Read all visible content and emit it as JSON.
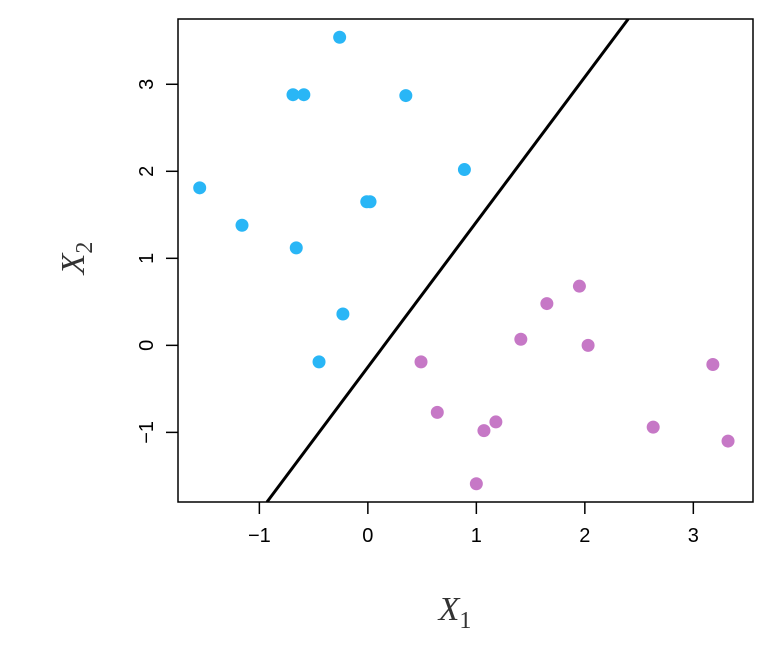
{
  "chart_data": {
    "type": "scatter",
    "xlabel": {
      "base": "X",
      "sub": "1"
    },
    "ylabel": {
      "base": "X",
      "sub": "2"
    },
    "xlim": [
      -1.75,
      3.55
    ],
    "ylim": [
      -1.8,
      3.75
    ],
    "x_ticks": [
      -1,
      0,
      1,
      2,
      3
    ],
    "y_ticks": [
      -1,
      0,
      1,
      2,
      3
    ],
    "x_tick_labels": [
      "−1",
      "0",
      "1",
      "2",
      "3"
    ],
    "y_tick_labels": [
      "−1",
      "0",
      "1",
      "2",
      "3"
    ],
    "grid": false,
    "line": {
      "points": [
        [
          -0.93,
          -1.8
        ],
        [
          2.4,
          3.75
        ]
      ],
      "color": "#000000"
    },
    "series": [
      {
        "color": "#29b6f6",
        "points": [
          [
            -0.26,
            3.54
          ],
          [
            -0.69,
            2.88
          ],
          [
            -0.59,
            2.88
          ],
          [
            0.35,
            2.87
          ],
          [
            0.89,
            2.02
          ],
          [
            -1.55,
            1.81
          ],
          [
            -0.01,
            1.65
          ],
          [
            0.02,
            1.65
          ],
          [
            -1.16,
            1.38
          ],
          [
            -0.66,
            1.12
          ],
          [
            -0.23,
            0.36
          ],
          [
            -0.45,
            -0.19
          ]
        ]
      },
      {
        "color": "#c678c6",
        "points": [
          [
            1.95,
            0.68
          ],
          [
            1.65,
            0.48
          ],
          [
            1.41,
            0.07
          ],
          [
            2.03,
            0.0
          ],
          [
            0.49,
            -0.19
          ],
          [
            3.18,
            -0.22
          ],
          [
            0.64,
            -0.77
          ],
          [
            1.18,
            -0.88
          ],
          [
            1.07,
            -0.98
          ],
          [
            2.63,
            -0.94
          ],
          [
            3.32,
            -1.1
          ],
          [
            1.0,
            -1.59
          ]
        ]
      }
    ]
  }
}
